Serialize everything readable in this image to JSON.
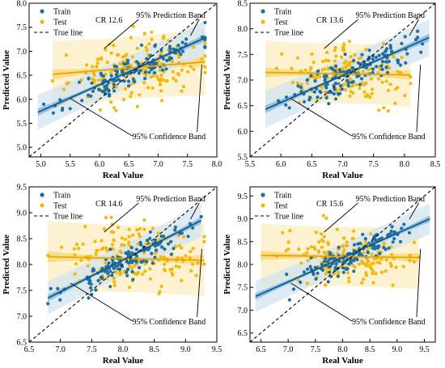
{
  "colors": {
    "train": "#1f6fa5",
    "test": "#f5b800",
    "train_band_conf": "#7fb3d8",
    "train_band_pred": "#cfe2f1",
    "test_band_conf": "#f7d774",
    "test_band_pred": "#fbeec3",
    "true_line": "#000000"
  },
  "legend": {
    "train": "Train",
    "test": "Test",
    "true_line": "True line"
  },
  "annotations": {
    "prediction_band": "95% Prediction Band",
    "confidence_band": "95% Confidence Band"
  },
  "chart_data": [
    {
      "type": "scatter",
      "cr_label": "CR 12.6",
      "xlabel": "Real Value",
      "ylabel": "Predicted Value",
      "xlim": [
        4.8,
        8.0
      ],
      "ylim": [
        4.8,
        8.0
      ],
      "xticks": [
        "5.0",
        "5.5",
        "6.0",
        "6.5",
        "7.0",
        "7.5",
        "8.0"
      ],
      "yticks": [
        "5.0",
        "5.5",
        "6.0",
        "6.5",
        "7.0",
        "7.5",
        "8.0"
      ],
      "train_fit": {
        "x": [
          4.95,
          7.8
        ],
        "y": [
          5.73,
          7.28
        ]
      },
      "test_fit": {
        "x": [
          5.2,
          7.8
        ],
        "y": [
          6.52,
          6.78
        ]
      },
      "true_line": {
        "x": [
          4.8,
          8.0
        ],
        "y": [
          4.8,
          8.0
        ]
      },
      "train_points": {
        "x_range": [
          4.95,
          7.8
        ],
        "mean": 6.6,
        "sd": 0.55,
        "n": 140,
        "slope": 0.55,
        "resid_sd": 0.17,
        "seed": 11
      },
      "test_points": {
        "x_range": [
          5.2,
          7.8
        ],
        "mean": 6.6,
        "sd": 0.55,
        "n": 160,
        "slope": 0.1,
        "resid_sd": 0.3,
        "seed": 23
      },
      "legend_placement": "top-left",
      "grid": false
    },
    {
      "type": "scatter",
      "cr_label": "CR 13.6",
      "xlabel": "Real Value",
      "ylabel": "Predicted Value",
      "xlim": [
        5.5,
        8.5
      ],
      "ylim": [
        5.5,
        8.5
      ],
      "xticks": [
        "5.5",
        "6.0",
        "6.5",
        "7.0",
        "7.5",
        "8.0",
        "8.5"
      ],
      "yticks": [
        "5.5",
        "6.0",
        "6.5",
        "7.0",
        "7.5",
        "8.0",
        "8.5"
      ],
      "train_fit": {
        "x": [
          5.75,
          8.4
        ],
        "y": [
          6.43,
          7.83
        ]
      },
      "test_fit": {
        "x": [
          5.75,
          8.1
        ],
        "y": [
          7.15,
          7.1
        ]
      },
      "true_line": {
        "x": [
          5.5,
          8.5
        ],
        "y": [
          5.5,
          8.5
        ]
      },
      "train_points": {
        "x_range": [
          5.75,
          8.4
        ],
        "mean": 7.15,
        "sd": 0.5,
        "n": 140,
        "slope": 0.55,
        "resid_sd": 0.17,
        "seed": 37
      },
      "test_points": {
        "x_range": [
          5.75,
          8.1
        ],
        "mean": 7.1,
        "sd": 0.5,
        "n": 160,
        "slope": -0.02,
        "resid_sd": 0.27,
        "seed": 41
      },
      "legend_placement": "top-left",
      "grid": false
    },
    {
      "type": "scatter",
      "cr_label": "CR 14.6",
      "xlabel": "Real Value",
      "ylabel": "Predicted Value",
      "xlim": [
        6.5,
        9.5
      ],
      "ylim": [
        6.5,
        9.5
      ],
      "xticks": [
        "6.5",
        "7.0",
        "7.5",
        "8.0",
        "8.5",
        "9.0",
        "9.5"
      ],
      "yticks": [
        "6.5",
        "7.0",
        "7.5",
        "8.0",
        "8.5",
        "9.0",
        "9.5"
      ],
      "train_fit": {
        "x": [
          6.8,
          9.25
        ],
        "y": [
          7.35,
          8.85
        ]
      },
      "test_fit": {
        "x": [
          6.8,
          9.3
        ],
        "y": [
          8.15,
          8.08
        ]
      },
      "true_line": {
        "x": [
          6.5,
          9.5
        ],
        "y": [
          6.5,
          9.5
        ]
      },
      "train_points": {
        "x_range": [
          6.8,
          9.25
        ],
        "mean": 8.1,
        "sd": 0.5,
        "n": 140,
        "slope": 0.6,
        "resid_sd": 0.15,
        "seed": 53
      },
      "test_points": {
        "x_range": [
          6.8,
          9.3
        ],
        "mean": 8.1,
        "sd": 0.5,
        "n": 160,
        "slope": -0.03,
        "resid_sd": 0.3,
        "seed": 67
      },
      "legend_placement": "top-left",
      "grid": false
    },
    {
      "type": "scatter",
      "cr_label": "CR 15.6",
      "xlabel": "Real Value",
      "ylabel": "Predicted Value",
      "xlim": [
        6.3,
        9.7
      ],
      "ylim": [
        6.3,
        9.7
      ],
      "xticks": [
        "6.5",
        "7.0",
        "7.5",
        "8.0",
        "8.5",
        "9.0",
        "9.5"
      ],
      "yticks": [
        "6.5",
        "7.0",
        "7.5",
        "8.0",
        "8.5",
        "9.0",
        "9.5"
      ],
      "train_fit": {
        "x": [
          6.4,
          9.6
        ],
        "y": [
          7.3,
          9.0
        ]
      },
      "test_fit": {
        "x": [
          6.5,
          9.4
        ],
        "y": [
          8.2,
          8.15
        ]
      },
      "true_line": {
        "x": [
          6.3,
          9.7
        ],
        "y": [
          6.3,
          9.7
        ]
      },
      "train_points": {
        "x_range": [
          6.4,
          9.6
        ],
        "mean": 8.2,
        "sd": 0.55,
        "n": 140,
        "slope": 0.55,
        "resid_sd": 0.16,
        "seed": 71
      },
      "test_points": {
        "x_range": [
          6.5,
          9.4
        ],
        "mean": 8.15,
        "sd": 0.55,
        "n": 160,
        "slope": -0.02,
        "resid_sd": 0.3,
        "seed": 89
      },
      "legend_placement": "top-left",
      "grid": false
    }
  ]
}
